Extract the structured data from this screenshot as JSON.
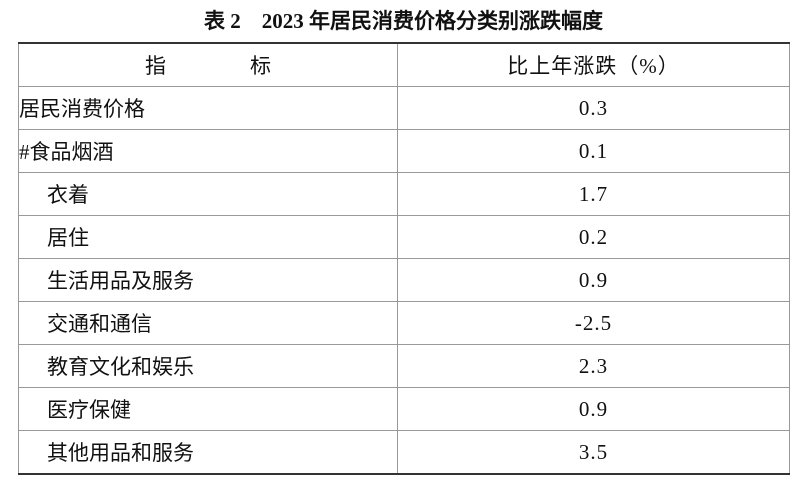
{
  "title": "表 2　2023 年居民消费价格分类别涨跌幅度",
  "table": {
    "header": [
      "指　　　　标",
      "比上年涨跌（%）"
    ],
    "rows": [
      [
        "居民消费价格",
        0.3
      ],
      [
        "#食品烟酒",
        0.1
      ],
      [
        "衣着",
        1.7
      ],
      [
        "居住",
        0.2
      ],
      [
        "生活用品及服务",
        0.9
      ],
      [
        "交通和通信",
        -2.5
      ],
      [
        "教育文化和娱乐",
        2.3
      ],
      [
        "医疗保健",
        0.9
      ],
      [
        "其他用品和服务",
        3.5
      ]
    ]
  }
}
